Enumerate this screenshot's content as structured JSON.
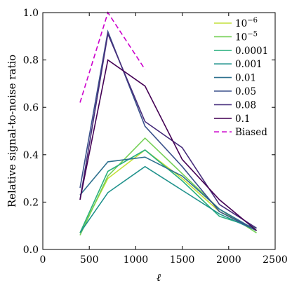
{
  "chart_data": {
    "type": "line",
    "title": "",
    "xlabel": "ℓ",
    "ylabel": "Relative signal-to-noise ratio",
    "xlim": [
      0,
      2500
    ],
    "ylim": [
      0.0,
      1.0
    ],
    "xticks": [
      0,
      500,
      1000,
      1500,
      2000,
      2500
    ],
    "xtick_labels": [
      "0",
      "500",
      "1000",
      "1500",
      "2000",
      "2500"
    ],
    "yticks": [
      0.0,
      0.2,
      0.4,
      0.6,
      0.8,
      1.0
    ],
    "ytick_labels": [
      "0.0",
      "0.2",
      "0.4",
      "0.6",
      "0.8",
      "1.0"
    ],
    "grid": false,
    "legend_position": "top-right",
    "x": [
      400,
      700,
      1100,
      1500,
      1900,
      2300
    ],
    "series": [
      {
        "name": "10",
        "sup": "−6",
        "color": "#c4e03a",
        "dashed": false,
        "values": [
          0.07,
          0.3,
          0.42,
          0.3,
          0.16,
          0.08
        ]
      },
      {
        "name": "10",
        "sup": "−5",
        "color": "#74d055",
        "dashed": false,
        "values": [
          0.06,
          0.31,
          0.47,
          0.32,
          0.17,
          0.07
        ]
      },
      {
        "name": "0.0001",
        "sup": "",
        "color": "#2bb07f",
        "dashed": false,
        "values": [
          0.07,
          0.33,
          0.42,
          0.29,
          0.14,
          0.09
        ]
      },
      {
        "name": "0.001",
        "sup": "",
        "color": "#20928c",
        "dashed": false,
        "values": [
          0.07,
          0.24,
          0.35,
          0.25,
          0.15,
          0.08
        ]
      },
      {
        "name": "0.01",
        "sup": "",
        "color": "#2d708e",
        "dashed": false,
        "values": [
          0.23,
          0.37,
          0.39,
          0.31,
          0.17,
          0.08
        ]
      },
      {
        "name": "0.05",
        "sup": "",
        "color": "#3b518b",
        "dashed": false,
        "values": [
          0.26,
          0.92,
          0.52,
          0.35,
          0.16,
          0.08
        ]
      },
      {
        "name": "0.08",
        "sup": "",
        "color": "#472d7b",
        "dashed": false,
        "values": [
          0.21,
          0.91,
          0.54,
          0.43,
          0.19,
          0.09
        ]
      },
      {
        "name": "0.1",
        "sup": "",
        "color": "#440154",
        "dashed": false,
        "values": [
          0.21,
          0.8,
          0.69,
          0.38,
          0.21,
          0.08
        ]
      },
      {
        "name": "Biased",
        "sup": "",
        "color": "#cc00cc",
        "dashed": true,
        "values": [
          0.62,
          1.0,
          0.76,
          null,
          null,
          null
        ]
      }
    ]
  }
}
